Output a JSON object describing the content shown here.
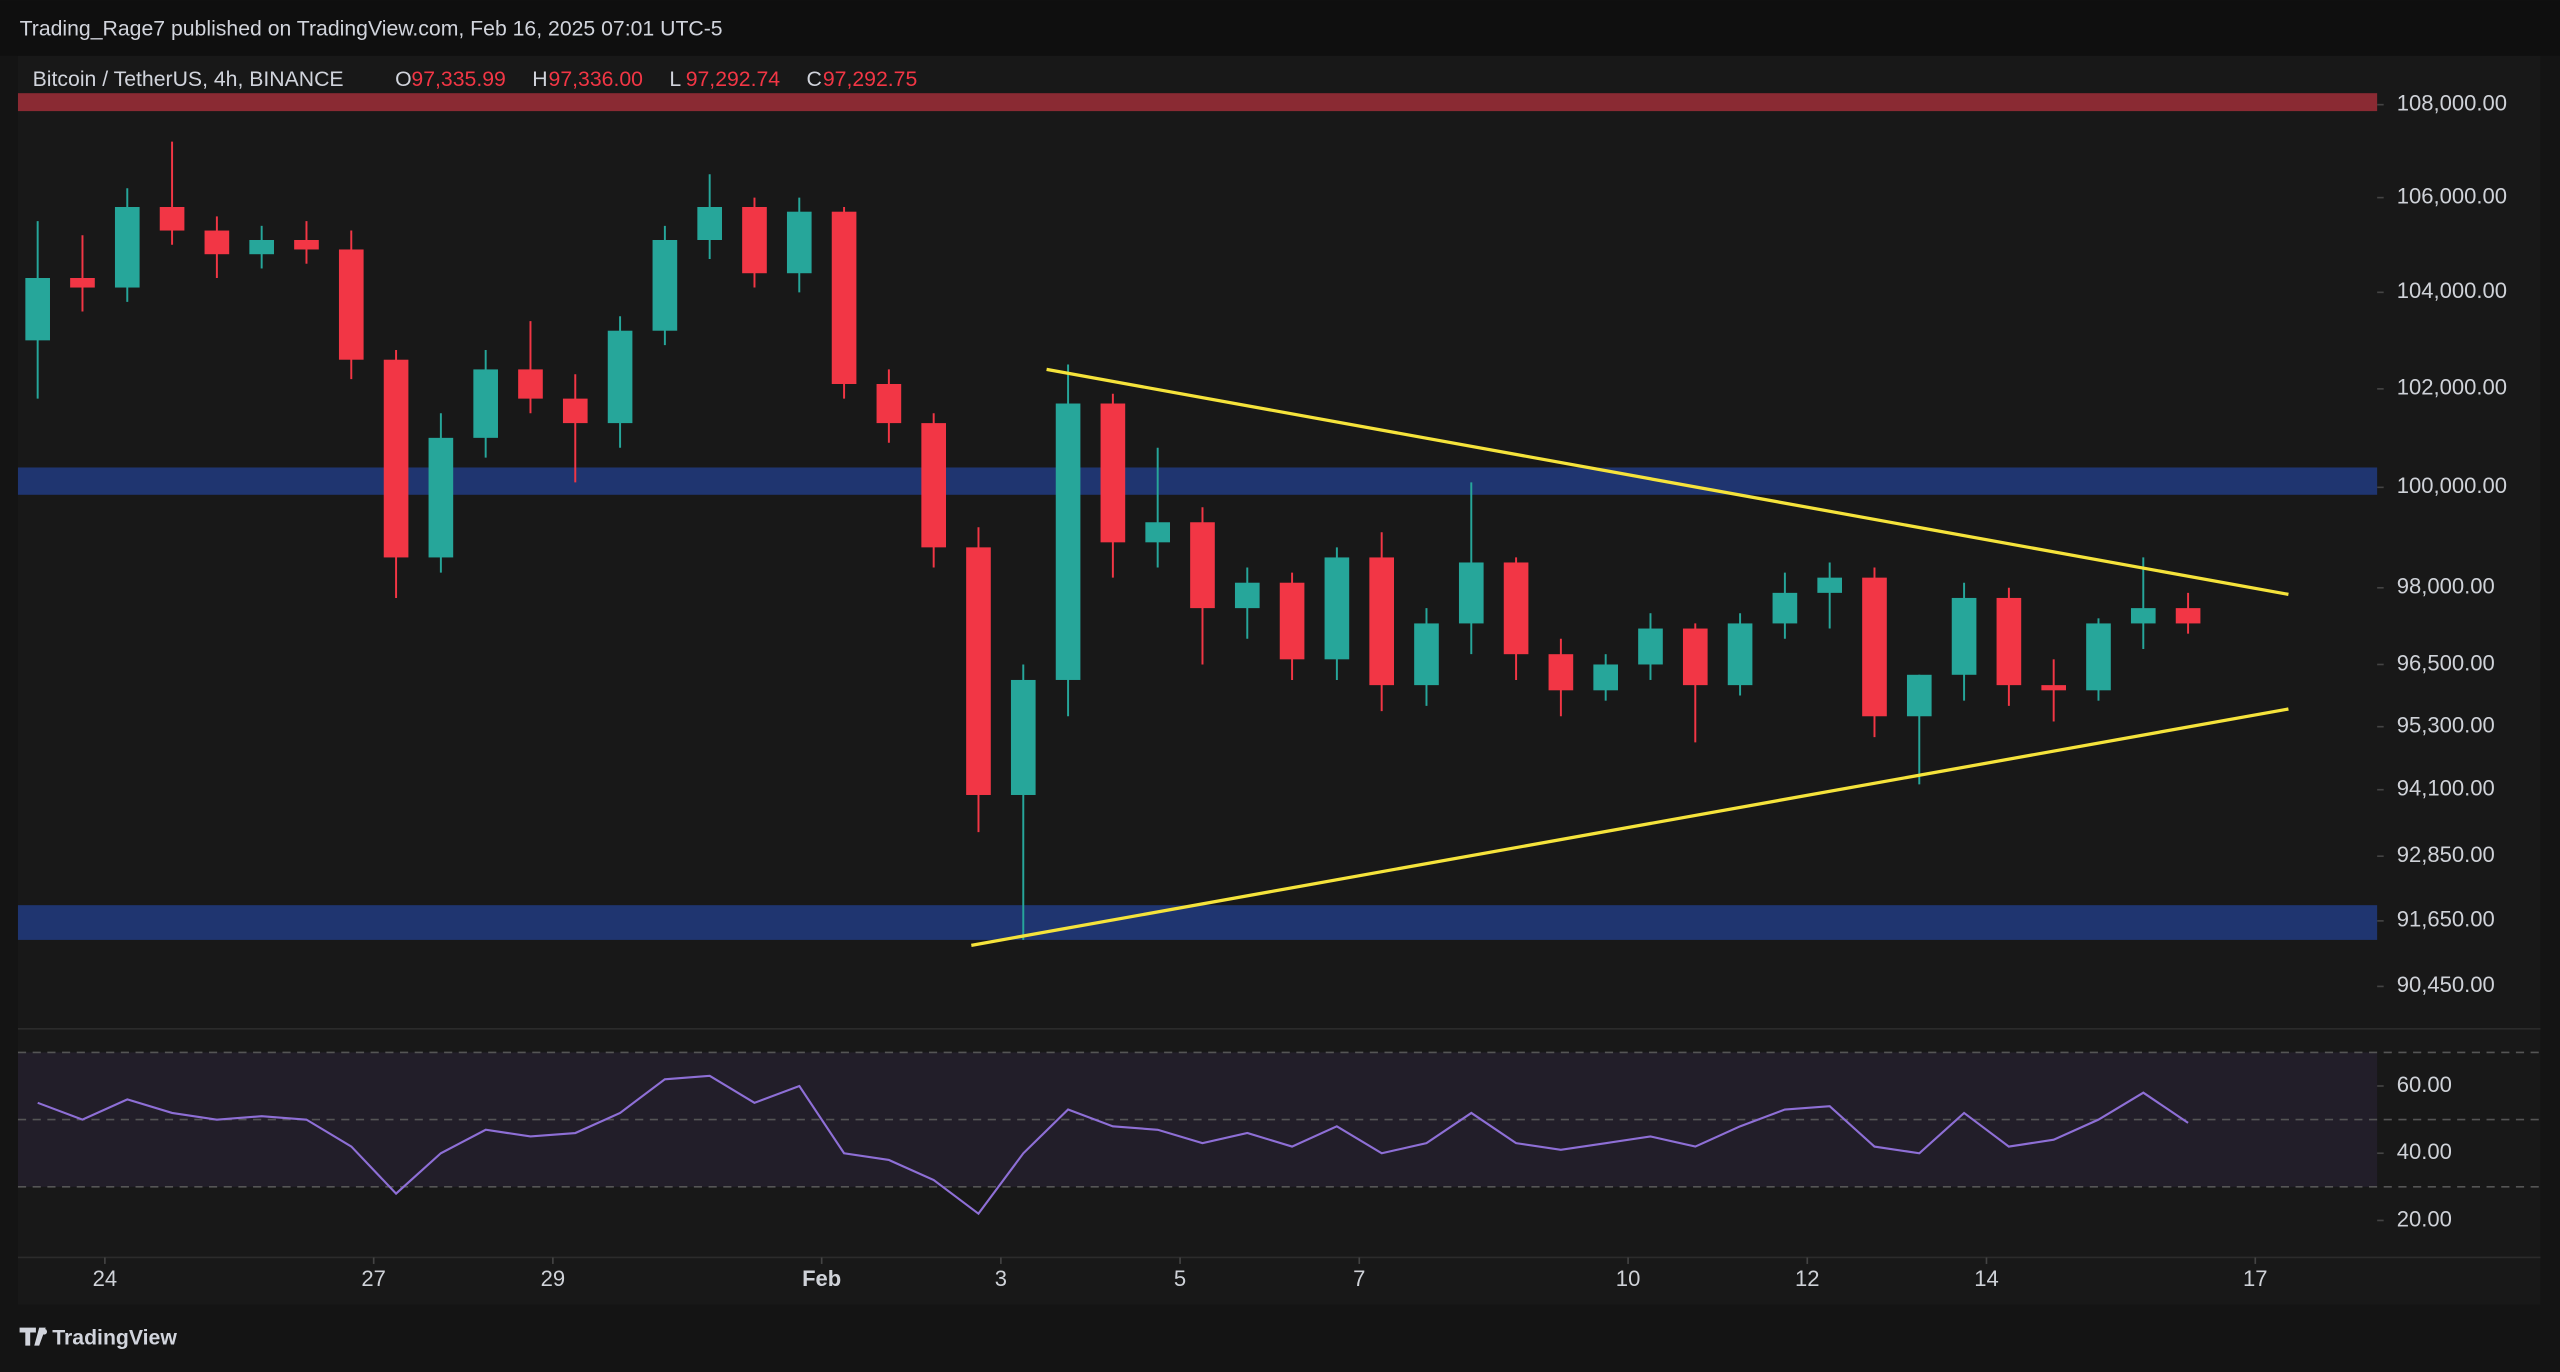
{
  "chart_data": {
    "type": "candlestick",
    "attribution": "Trading_Rage7 published on TradingView.com, Feb 16, 2025 07:01 UTC-5",
    "title": "Bitcoin / TetherUS, 4h, BINANCE",
    "legend": [
      {
        "letter": "O",
        "price": {
          "value": 97335.99,
          "label": "97,335.99"
        }
      },
      {
        "letter": "H",
        "price": {
          "value": 97336.0,
          "label": "97,336.00"
        }
      },
      {
        "letter": "L",
        "price": {
          "value": 97292.74,
          "label": "97,292.74"
        }
      },
      {
        "letter": "C",
        "price": {
          "value": 97292.75,
          "label": "97,292.75"
        }
      }
    ],
    "brand": "TradingView",
    "up_color": "#26a69a",
    "down_color": "#f23645",
    "log": true,
    "xlim": [
      23.03,
      49.36
    ],
    "ylim": [
      89740,
      109210
    ],
    "xticks": [
      24,
      27,
      29,
      {
        "value": 32,
        "label": "Feb"
      },
      {
        "value": 34,
        "label": "3"
      },
      {
        "value": 36,
        "label": "5"
      },
      {
        "value": 38,
        "label": "7"
      },
      {
        "value": 41,
        "label": "10"
      },
      {
        "value": 43,
        "label": "12"
      },
      {
        "value": 45,
        "label": "14"
      },
      {
        "value": 48,
        "label": "17"
      }
    ],
    "yticks": [
      {
        "value": 108000,
        "label": "108,000.00"
      },
      {
        "value": 106000,
        "label": "106,000.00"
      },
      {
        "value": 104000,
        "label": "104,000.00"
      },
      {
        "value": 102000,
        "label": "102,000.00"
      },
      {
        "value": 100000,
        "label": "100,000.00"
      },
      {
        "value": 98000,
        "label": "98,000.00"
      },
      {
        "value": 96500,
        "label": "96,500.00"
      },
      {
        "value": 95300,
        "label": "95,300.00"
      },
      {
        "value": 94100,
        "label": "94,100.00"
      },
      {
        "value": 92850,
        "label": "92,850.00"
      },
      {
        "value": 91650,
        "label": "91,650.00"
      },
      {
        "value": 90450,
        "label": "90,450.00"
      }
    ],
    "x": [
      23.25,
      23.75,
      24.25,
      24.75,
      25.25,
      25.75,
      26.25,
      26.75,
      27.25,
      27.75,
      28.25,
      28.75,
      29.25,
      29.75,
      30.25,
      30.75,
      31.25,
      31.75,
      32.25,
      32.75,
      33.25,
      33.75,
      34.25,
      34.75,
      35.25,
      35.75,
      36.25,
      36.75,
      37.25,
      37.75,
      38.25,
      38.75,
      39.25,
      39.75,
      40.25,
      40.75,
      41.25,
      41.75,
      42.25,
      42.75,
      43.25,
      43.75,
      44.25,
      44.75,
      45.25,
      45.75,
      46.25,
      46.75,
      47.25
    ],
    "values": [
      [
        103000,
        105500,
        101800,
        104300
      ],
      [
        104300,
        105200,
        103600,
        104100
      ],
      [
        104100,
        106200,
        103800,
        105800
      ],
      [
        105800,
        107200,
        105000,
        105300
      ],
      [
        105300,
        105600,
        104300,
        104800
      ],
      [
        104800,
        105400,
        104500,
        105100
      ],
      [
        105100,
        105500,
        104600,
        104900
      ],
      [
        104900,
        105300,
        102200,
        102600
      ],
      [
        102600,
        102800,
        97800,
        98600
      ],
      [
        98600,
        101500,
        98300,
        101000
      ],
      [
        101000,
        102800,
        100600,
        102400
      ],
      [
        102400,
        103400,
        101500,
        101800
      ],
      [
        101800,
        102300,
        100100,
        101300
      ],
      [
        101300,
        103500,
        100800,
        103200
      ],
      [
        103200,
        105400,
        102900,
        105100
      ],
      [
        105100,
        106500,
        104700,
        105800
      ],
      [
        105800,
        106000,
        104100,
        104400
      ],
      [
        104400,
        106000,
        104000,
        105700
      ],
      [
        105700,
        105800,
        101800,
        102100
      ],
      [
        102100,
        102400,
        100900,
        101300
      ],
      [
        101300,
        101500,
        98400,
        98800
      ],
      [
        98800,
        99200,
        93300,
        94000
      ],
      [
        94000,
        96500,
        91300,
        96200
      ],
      [
        96200,
        102500,
        95500,
        101700
      ],
      [
        101700,
        101900,
        98200,
        98900
      ],
      [
        98900,
        100800,
        98400,
        99300
      ],
      [
        99300,
        99600,
        96500,
        97600
      ],
      [
        97600,
        98400,
        97000,
        98100
      ],
      [
        98100,
        98300,
        96200,
        96600
      ],
      [
        96600,
        98800,
        96200,
        98600
      ],
      [
        98600,
        99100,
        95600,
        96100
      ],
      [
        96100,
        97600,
        95700,
        97300
      ],
      [
        97300,
        100100,
        96700,
        98500
      ],
      [
        98500,
        98600,
        96200,
        96700
      ],
      [
        96700,
        97000,
        95500,
        96000
      ],
      [
        96000,
        96700,
        95800,
        96500
      ],
      [
        96500,
        97500,
        96200,
        97200
      ],
      [
        97200,
        97300,
        95000,
        96100
      ],
      [
        96100,
        97500,
        95900,
        97300
      ],
      [
        97300,
        98300,
        97000,
        97900
      ],
      [
        97900,
        98500,
        97200,
        98200
      ],
      [
        98200,
        98400,
        95100,
        95500
      ],
      [
        95500,
        96300,
        94200,
        96300
      ],
      [
        96300,
        98100,
        95800,
        97800
      ],
      [
        97800,
        98000,
        95700,
        96100
      ],
      [
        96100,
        96600,
        95400,
        96000
      ],
      [
        96000,
        97400,
        95800,
        97300
      ],
      [
        97300,
        98600,
        96800,
        97600
      ],
      [
        97600,
        97900,
        97100,
        97300
      ]
    ],
    "zones": [
      {
        "color": "#8a2a33",
        "range": [
          107860,
          108250
        ]
      },
      {
        "color": "#1f3570",
        "range": [
          99850,
          100400
        ]
      },
      {
        "color": "#1f3570",
        "range": [
          91300,
          91940
        ]
      }
    ],
    "trendlines": [
      {
        "color": "#f5e33b",
        "x": [
          34.51,
          48.37
        ],
        "y": [
          102400,
          97870
        ]
      },
      {
        "color": "#f5e33b",
        "x": [
          33.67,
          48.37
        ],
        "y": [
          91200,
          95640
        ]
      }
    ],
    "rsi": {
      "color": "#8e6fd6",
      "ylim": [
        9,
        77
      ],
      "yticks": [
        {
          "value": 60,
          "label": "60.00"
        },
        {
          "value": 40,
          "label": "40.00"
        },
        {
          "value": 20,
          "label": "20.00"
        }
      ],
      "bands": [
        70,
        50,
        30
      ],
      "values": [
        55,
        50,
        56,
        52,
        50,
        51,
        50,
        42,
        28,
        40,
        47,
        45,
        46,
        52,
        62,
        63,
        55,
        60,
        40,
        38,
        32,
        22,
        40,
        53,
        48,
        47,
        43,
        46,
        42,
        48,
        40,
        43,
        52,
        43,
        41,
        43,
        45,
        42,
        48,
        53,
        54,
        42,
        40,
        52,
        42,
        44,
        50,
        58,
        49
      ]
    }
  }
}
